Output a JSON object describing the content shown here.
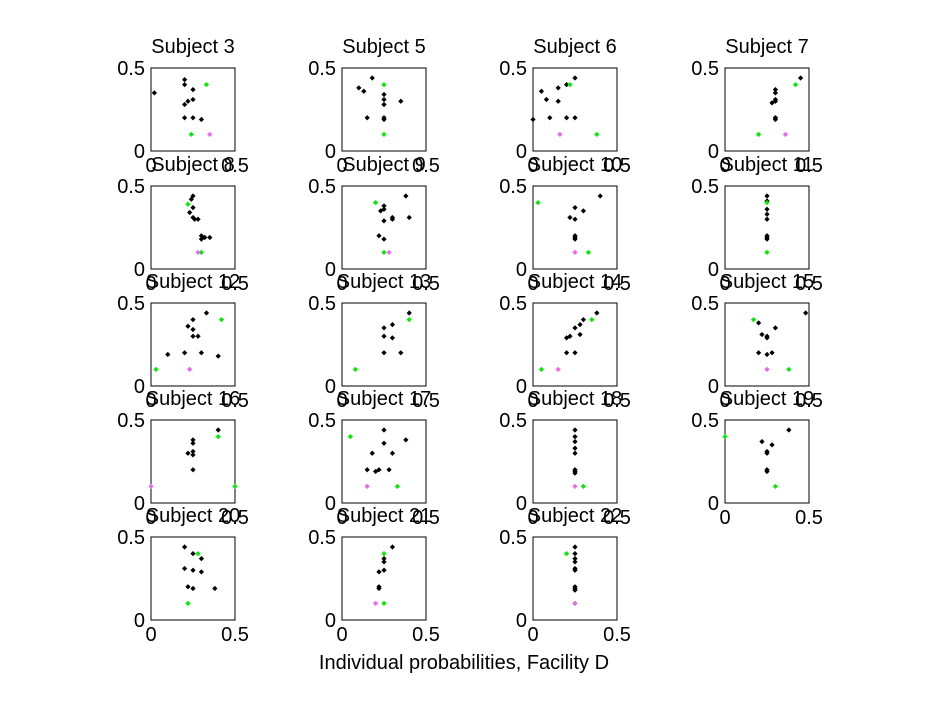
{
  "figure": {
    "xlabel": "Individual probabilities, Facility D"
  },
  "colors": {
    "black": "#000000",
    "green": "#00ee00",
    "pink": "#ee66ee"
  },
  "chart_data": [
    {
      "type": "scatter",
      "title": "Subject 3",
      "xlim": [
        0,
        0.5
      ],
      "ylim": [
        0,
        0.5
      ],
      "xticks": [
        "0",
        "0.5"
      ],
      "yticks": [
        "0",
        "0.5"
      ],
      "series": [
        {
          "color": "black",
          "x": [
            0.02,
            0.2,
            0.2,
            0.25,
            0.25,
            0.22,
            0.2,
            0.25,
            0.3,
            0.2
          ],
          "y": [
            0.35,
            0.43,
            0.4,
            0.37,
            0.31,
            0.3,
            0.28,
            0.2,
            0.19,
            0.2
          ]
        },
        {
          "color": "green",
          "x": [
            0.33,
            0.24
          ],
          "y": [
            0.4,
            0.1
          ]
        },
        {
          "color": "pink",
          "x": [
            0.35
          ],
          "y": [
            0.1
          ]
        }
      ]
    },
    {
      "type": "scatter",
      "title": "Subject 5",
      "xlim": [
        0,
        0.5
      ],
      "ylim": [
        0,
        0.5
      ],
      "xticks": [
        "0",
        "0.5"
      ],
      "yticks": [
        "0",
        "0.5"
      ],
      "series": [
        {
          "color": "black",
          "x": [
            0.1,
            0.13,
            0.18,
            0.25,
            0.25,
            0.25,
            0.35,
            0.15,
            0.25,
            0.25
          ],
          "y": [
            0.38,
            0.36,
            0.44,
            0.34,
            0.31,
            0.28,
            0.3,
            0.2,
            0.19,
            0.2
          ]
        },
        {
          "color": "green",
          "x": [
            0.25,
            0.25
          ],
          "y": [
            0.4,
            0.1
          ]
        },
        {
          "color": "pink",
          "x": [],
          "y": []
        }
      ]
    },
    {
      "type": "scatter",
      "title": "Subject 6",
      "xlim": [
        0,
        0.5
      ],
      "ylim": [
        0,
        0.5
      ],
      "xticks": [
        "0",
        "0.5"
      ],
      "yticks": [
        "0",
        "0.5"
      ],
      "series": [
        {
          "color": "black",
          "x": [
            0.05,
            0.08,
            0.15,
            0.2,
            0.25,
            0.15,
            0.1,
            0.0,
            0.25,
            0.2
          ],
          "y": [
            0.36,
            0.31,
            0.38,
            0.4,
            0.44,
            0.3,
            0.2,
            0.19,
            0.2,
            0.2
          ]
        },
        {
          "color": "green",
          "x": [
            0.22,
            0.38
          ],
          "y": [
            0.4,
            0.1
          ]
        },
        {
          "color": "pink",
          "x": [
            0.16
          ],
          "y": [
            0.1
          ]
        }
      ]
    },
    {
      "type": "scatter",
      "title": "Subject 7",
      "xlim": [
        0,
        0.5
      ],
      "ylim": [
        0,
        0.5
      ],
      "xticks": [
        "0",
        "0.5"
      ],
      "yticks": [
        "0",
        "0.5"
      ],
      "series": [
        {
          "color": "black",
          "x": [
            0.45,
            0.3,
            0.3,
            0.3,
            0.3,
            0.28,
            0.3,
            0.3,
            0.3
          ],
          "y": [
            0.44,
            0.37,
            0.35,
            0.31,
            0.3,
            0.29,
            0.2,
            0.19,
            0.2
          ]
        },
        {
          "color": "green",
          "x": [
            0.42,
            0.2
          ],
          "y": [
            0.4,
            0.1
          ]
        },
        {
          "color": "pink",
          "x": [
            0.36
          ],
          "y": [
            0.1
          ]
        }
      ]
    },
    {
      "type": "scatter",
      "title": "Subject 8",
      "xlim": [
        0,
        0.5
      ],
      "ylim": [
        0,
        0.5
      ],
      "xticks": [
        "0",
        "0.5"
      ],
      "yticks": [
        "0",
        "0.5"
      ],
      "series": [
        {
          "color": "black",
          "x": [
            0.25,
            0.24,
            0.25,
            0.23,
            0.25,
            0.26,
            0.28,
            0.3,
            0.32,
            0.35,
            0.3
          ],
          "y": [
            0.44,
            0.42,
            0.37,
            0.34,
            0.31,
            0.3,
            0.3,
            0.2,
            0.19,
            0.19,
            0.18
          ]
        },
        {
          "color": "green",
          "x": [
            0.22,
            0.3
          ],
          "y": [
            0.39,
            0.1
          ]
        },
        {
          "color": "pink",
          "x": [
            0.28
          ],
          "y": [
            0.1
          ]
        }
      ]
    },
    {
      "type": "scatter",
      "title": "Subject 9",
      "xlim": [
        0,
        0.5
      ],
      "ylim": [
        0,
        0.5
      ],
      "xticks": [
        "0",
        "0.5"
      ],
      "yticks": [
        "0",
        "0.5"
      ],
      "series": [
        {
          "color": "black",
          "x": [
            0.25,
            0.25,
            0.23,
            0.3,
            0.3,
            0.25,
            0.38,
            0.4,
            0.22,
            0.25
          ],
          "y": [
            0.38,
            0.36,
            0.35,
            0.3,
            0.31,
            0.29,
            0.44,
            0.31,
            0.2,
            0.18
          ]
        },
        {
          "color": "green",
          "x": [
            0.2,
            0.25
          ],
          "y": [
            0.4,
            0.1
          ]
        },
        {
          "color": "pink",
          "x": [
            0.28
          ],
          "y": [
            0.1
          ]
        }
      ]
    },
    {
      "type": "scatter",
      "title": "Subject 10",
      "xlim": [
        0,
        0.5
      ],
      "ylim": [
        0,
        0.5
      ],
      "xticks": [
        "0",
        "0.5"
      ],
      "yticks": [
        "0",
        "0.5"
      ],
      "series": [
        {
          "color": "black",
          "x": [
            0.4,
            0.25,
            0.3,
            0.25,
            0.22,
            0.25,
            0.25,
            0.25
          ],
          "y": [
            0.44,
            0.37,
            0.35,
            0.3,
            0.31,
            0.2,
            0.19,
            0.18
          ]
        },
        {
          "color": "green",
          "x": [
            0.03,
            0.33
          ],
          "y": [
            0.4,
            0.1
          ]
        },
        {
          "color": "pink",
          "x": [
            0.25
          ],
          "y": [
            0.1
          ]
        }
      ]
    },
    {
      "type": "scatter",
      "title": "Subject 11",
      "xlim": [
        0,
        0.5
      ],
      "ylim": [
        0,
        0.5
      ],
      "xticks": [
        "0",
        "0.5"
      ],
      "yticks": [
        "0",
        "0.5"
      ],
      "series": [
        {
          "color": "black",
          "x": [
            0.25,
            0.25,
            0.25,
            0.25,
            0.25,
            0.25,
            0.25,
            0.25
          ],
          "y": [
            0.44,
            0.41,
            0.36,
            0.33,
            0.3,
            0.2,
            0.19,
            0.18
          ]
        },
        {
          "color": "green",
          "x": [
            0.25,
            0.25
          ],
          "y": [
            0.4,
            0.1
          ]
        },
        {
          "color": "pink",
          "x": [],
          "y": []
        }
      ]
    },
    {
      "type": "scatter",
      "title": "Subject 12",
      "xlim": [
        0,
        0.5
      ],
      "ylim": [
        0,
        0.5
      ],
      "xticks": [
        "0",
        "0.5"
      ],
      "yticks": [
        "0",
        "0.5"
      ],
      "series": [
        {
          "color": "black",
          "x": [
            0.33,
            0.25,
            0.22,
            0.25,
            0.28,
            0.25,
            0.3,
            0.1,
            0.2,
            0.4
          ],
          "y": [
            0.44,
            0.4,
            0.36,
            0.34,
            0.3,
            0.3,
            0.2,
            0.19,
            0.2,
            0.18
          ]
        },
        {
          "color": "green",
          "x": [
            0.42,
            0.03
          ],
          "y": [
            0.4,
            0.1
          ]
        },
        {
          "color": "pink",
          "x": [
            0.23
          ],
          "y": [
            0.1
          ]
        }
      ]
    },
    {
      "type": "scatter",
      "title": "Subject 13",
      "xlim": [
        0,
        0.5
      ],
      "ylim": [
        0,
        0.5
      ],
      "xticks": [
        "0",
        "0.5"
      ],
      "yticks": [
        "0",
        "0.5"
      ],
      "series": [
        {
          "color": "black",
          "x": [
            0.4,
            0.3,
            0.25,
            0.25,
            0.3,
            0.25,
            0.35
          ],
          "y": [
            0.44,
            0.37,
            0.35,
            0.3,
            0.29,
            0.2,
            0.2
          ]
        },
        {
          "color": "green",
          "x": [
            0.4,
            0.08
          ],
          "y": [
            0.4,
            0.1
          ]
        },
        {
          "color": "pink",
          "x": [],
          "y": []
        }
      ]
    },
    {
      "type": "scatter",
      "title": "Subject 14",
      "xlim": [
        0,
        0.5
      ],
      "ylim": [
        0,
        0.5
      ],
      "xticks": [
        "0",
        "0.5"
      ],
      "yticks": [
        "0",
        "0.5"
      ],
      "series": [
        {
          "color": "black",
          "x": [
            0.38,
            0.3,
            0.28,
            0.25,
            0.28,
            0.2,
            0.22,
            0.25,
            0.2
          ],
          "y": [
            0.44,
            0.4,
            0.37,
            0.35,
            0.31,
            0.29,
            0.3,
            0.2,
            0.2
          ]
        },
        {
          "color": "green",
          "x": [
            0.35,
            0.05
          ],
          "y": [
            0.4,
            0.1
          ]
        },
        {
          "color": "pink",
          "x": [
            0.15
          ],
          "y": [
            0.1
          ]
        }
      ]
    },
    {
      "type": "scatter",
      "title": "Subject 15",
      "xlim": [
        0,
        0.5
      ],
      "ylim": [
        0,
        0.5
      ],
      "xticks": [
        "0",
        "0.5"
      ],
      "yticks": [
        "0",
        "0.5"
      ],
      "series": [
        {
          "color": "black",
          "x": [
            0.2,
            0.3,
            0.25,
            0.22,
            0.25,
            0.2,
            0.25,
            0.48,
            0.28
          ],
          "y": [
            0.38,
            0.35,
            0.3,
            0.31,
            0.29,
            0.2,
            0.19,
            0.44,
            0.2
          ]
        },
        {
          "color": "green",
          "x": [
            0.17,
            0.38
          ],
          "y": [
            0.4,
            0.1
          ]
        },
        {
          "color": "pink",
          "x": [
            0.25
          ],
          "y": [
            0.1
          ]
        }
      ]
    },
    {
      "type": "scatter",
      "title": "Subject 16",
      "xlim": [
        0,
        0.5
      ],
      "ylim": [
        0,
        0.5
      ],
      "xticks": [
        "0",
        "0.5"
      ],
      "yticks": [
        "0",
        "0.5"
      ],
      "series": [
        {
          "color": "black",
          "x": [
            0.4,
            0.25,
            0.25,
            0.25,
            0.22,
            0.25,
            0.25
          ],
          "y": [
            0.44,
            0.38,
            0.36,
            0.31,
            0.3,
            0.29,
            0.2
          ]
        },
        {
          "color": "green",
          "x": [
            0.4,
            0.5
          ],
          "y": [
            0.4,
            0.1
          ]
        },
        {
          "color": "pink",
          "x": [
            0.0
          ],
          "y": [
            0.1
          ]
        }
      ]
    },
    {
      "type": "scatter",
      "title": "Subject 17",
      "xlim": [
        0,
        0.5
      ],
      "ylim": [
        0,
        0.5
      ],
      "xticks": [
        "0",
        "0.5"
      ],
      "yticks": [
        "0",
        "0.5"
      ],
      "series": [
        {
          "color": "black",
          "x": [
            0.25,
            0.38,
            0.25,
            0.3,
            0.18,
            0.22,
            0.15,
            0.2,
            0.28
          ],
          "y": [
            0.44,
            0.38,
            0.36,
            0.3,
            0.3,
            0.2,
            0.2,
            0.19,
            0.2
          ]
        },
        {
          "color": "green",
          "x": [
            0.05,
            0.33
          ],
          "y": [
            0.4,
            0.1
          ]
        },
        {
          "color": "pink",
          "x": [
            0.15
          ],
          "y": [
            0.1
          ]
        }
      ]
    },
    {
      "type": "scatter",
      "title": "Subject 18",
      "xlim": [
        0,
        0.5
      ],
      "ylim": [
        0,
        0.5
      ],
      "xticks": [
        "0",
        "0.5"
      ],
      "yticks": [
        "0",
        "0.5"
      ],
      "series": [
        {
          "color": "black",
          "x": [
            0.25,
            0.25,
            0.25,
            0.25,
            0.25,
            0.25,
            0.25,
            0.25
          ],
          "y": [
            0.44,
            0.4,
            0.37,
            0.33,
            0.3,
            0.2,
            0.19,
            0.18
          ]
        },
        {
          "color": "green",
          "x": [
            0.3
          ],
          "y": [
            0.1
          ]
        },
        {
          "color": "pink",
          "x": [
            0.25
          ],
          "y": [
            0.1
          ]
        }
      ]
    },
    {
      "type": "scatter",
      "title": "Subject 19",
      "xlim": [
        0,
        0.5
      ],
      "ylim": [
        0,
        0.5
      ],
      "xticks": [
        "0",
        "0.5"
      ],
      "yticks": [
        "0",
        "0.5"
      ],
      "series": [
        {
          "color": "black",
          "x": [
            0.38,
            0.22,
            0.28,
            0.25,
            0.25,
            0.25,
            0.25
          ],
          "y": [
            0.44,
            0.37,
            0.35,
            0.31,
            0.3,
            0.2,
            0.19
          ]
        },
        {
          "color": "green",
          "x": [
            0.0,
            0.3
          ],
          "y": [
            0.4,
            0.1
          ]
        },
        {
          "color": "pink",
          "x": [],
          "y": []
        }
      ]
    },
    {
      "type": "scatter",
      "title": "Subject 20",
      "xlim": [
        0,
        0.5
      ],
      "ylim": [
        0,
        0.5
      ],
      "xticks": [
        "0",
        "0.5"
      ],
      "yticks": [
        "0",
        "0.5"
      ],
      "series": [
        {
          "color": "black",
          "x": [
            0.2,
            0.25,
            0.3,
            0.2,
            0.25,
            0.3,
            0.22,
            0.25,
            0.38
          ],
          "y": [
            0.44,
            0.4,
            0.37,
            0.31,
            0.3,
            0.29,
            0.2,
            0.19,
            0.19
          ]
        },
        {
          "color": "green",
          "x": [
            0.28,
            0.22
          ],
          "y": [
            0.4,
            0.1
          ]
        },
        {
          "color": "pink",
          "x": [],
          "y": []
        }
      ]
    },
    {
      "type": "scatter",
      "title": "Subject 21",
      "xlim": [
        0,
        0.5
      ],
      "ylim": [
        0,
        0.5
      ],
      "xticks": [
        "0",
        "0.5"
      ],
      "yticks": [
        "0",
        "0.5"
      ],
      "series": [
        {
          "color": "black",
          "x": [
            0.3,
            0.25,
            0.25,
            0.25,
            0.22,
            0.22,
            0.22
          ],
          "y": [
            0.44,
            0.37,
            0.35,
            0.3,
            0.29,
            0.2,
            0.19
          ]
        },
        {
          "color": "green",
          "x": [
            0.25,
            0.25
          ],
          "y": [
            0.4,
            0.1
          ]
        },
        {
          "color": "pink",
          "x": [
            0.2
          ],
          "y": [
            0.1
          ]
        }
      ]
    },
    {
      "type": "scatter",
      "title": "Subject 22",
      "xlim": [
        0,
        0.5
      ],
      "ylim": [
        0,
        0.5
      ],
      "xticks": [
        "0",
        "0.5"
      ],
      "yticks": [
        "0",
        "0.5"
      ],
      "series": [
        {
          "color": "black",
          "x": [
            0.25,
            0.25,
            0.25,
            0.25,
            0.25,
            0.25,
            0.25,
            0.25,
            0.25
          ],
          "y": [
            0.44,
            0.4,
            0.37,
            0.35,
            0.31,
            0.3,
            0.2,
            0.19,
            0.18
          ]
        },
        {
          "color": "green",
          "x": [
            0.2,
            0.25
          ],
          "y": [
            0.4,
            0.1
          ]
        },
        {
          "color": "pink",
          "x": [
            0.25
          ],
          "y": [
            0.1
          ]
        }
      ]
    }
  ]
}
